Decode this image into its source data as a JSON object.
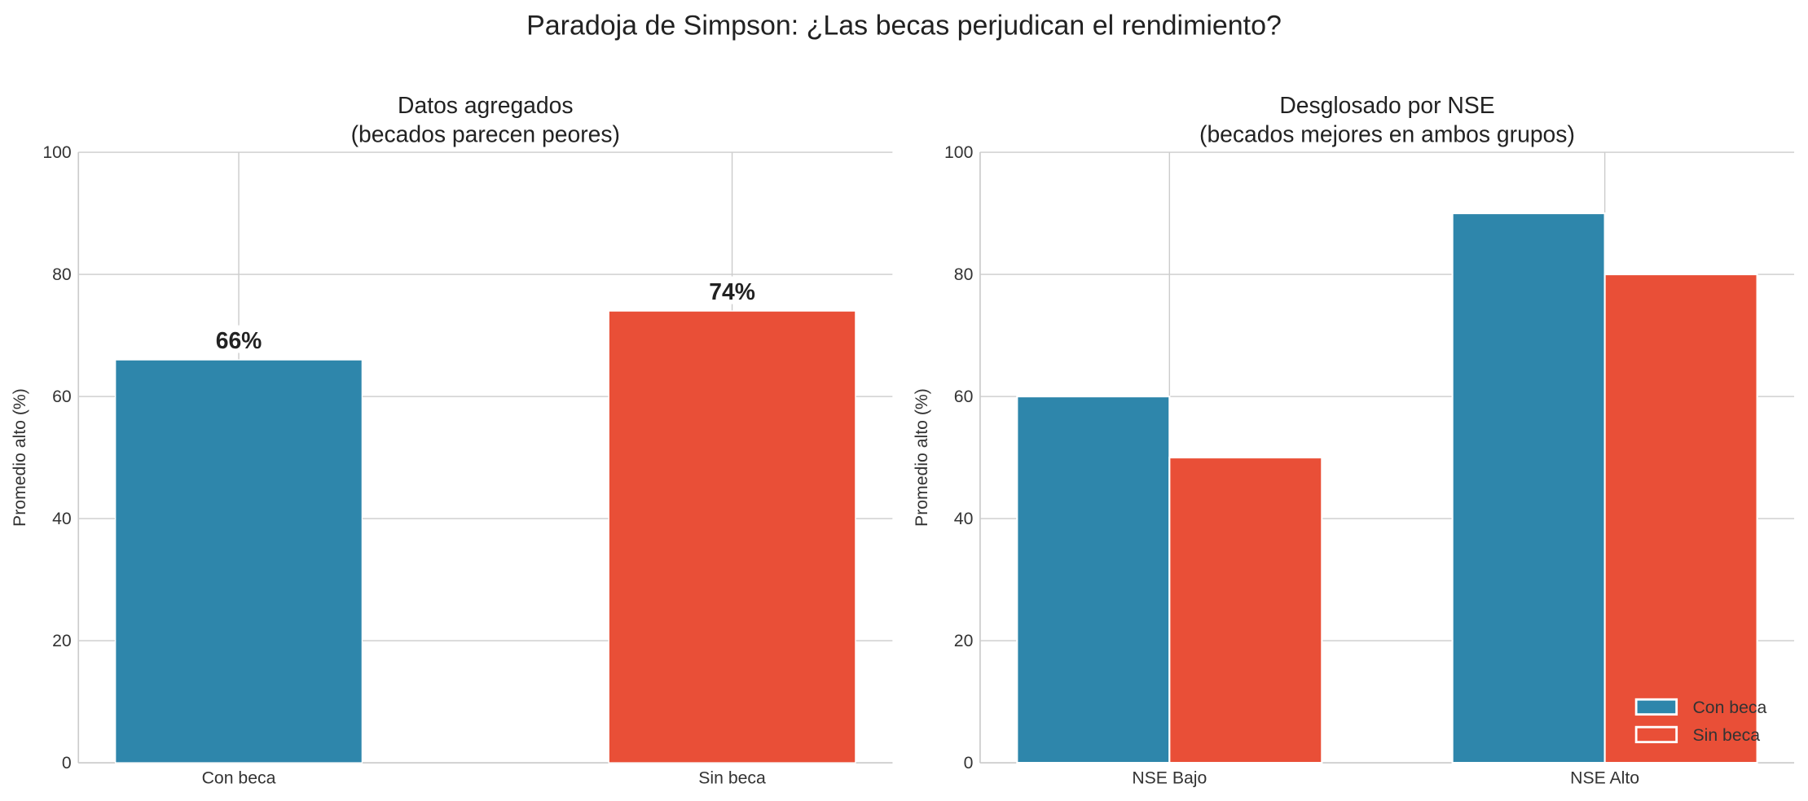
{
  "suptitle": "Paradoja de Simpson: ¿Las becas perjudican el rendimiento?",
  "colors": {
    "con_beca": "#2E86AB",
    "sin_beca": "#E94F37",
    "grid": "#cccccc"
  },
  "chart_data": [
    {
      "type": "bar",
      "title_line1": "Datos agregados",
      "title_line2": "(becados parecen peores)",
      "ylabel": "Promedio alto (%)",
      "ylim": [
        0,
        100
      ],
      "yticks": [
        0,
        20,
        40,
        60,
        80,
        100
      ],
      "categories": [
        "Con beca",
        "Sin beca"
      ],
      "values": [
        66,
        74
      ],
      "data_labels": [
        "66%",
        "74%"
      ],
      "bar_colors": [
        "#2E86AB",
        "#E94F37"
      ],
      "grid": true
    },
    {
      "type": "bar",
      "title_line1": "Desglosado por NSE",
      "title_line2": "(becados mejores en ambos grupos)",
      "ylabel": "Promedio alto (%)",
      "ylim": [
        0,
        100
      ],
      "yticks": [
        0,
        20,
        40,
        60,
        80,
        100
      ],
      "categories": [
        "NSE Bajo",
        "NSE Alto"
      ],
      "series": [
        {
          "name": "Con beca",
          "values": [
            60,
            90
          ],
          "color": "#2E86AB"
        },
        {
          "name": "Sin beca",
          "values": [
            50,
            80
          ],
          "color": "#E94F37"
        }
      ],
      "legend": "lower-right",
      "grid": true
    }
  ]
}
